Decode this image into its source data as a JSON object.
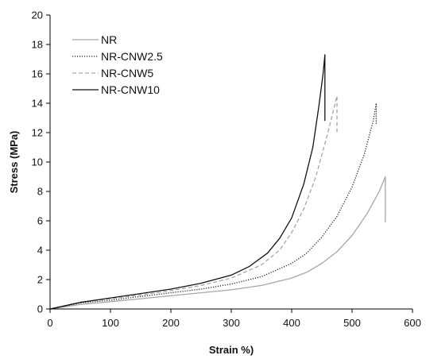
{
  "chart_data": {
    "type": "line",
    "xlabel": "Strain %)",
    "ylabel": "Stress (MPa)",
    "xlim": [
      0,
      600
    ],
    "ylim": [
      0,
      20
    ],
    "xticks": [
      0,
      100,
      200,
      300,
      400,
      500,
      600
    ],
    "yticks": [
      0,
      2,
      4,
      6,
      8,
      10,
      12,
      14,
      16,
      18,
      20
    ],
    "grid": false,
    "legend_position": "top-left",
    "series": [
      {
        "name": "NR",
        "color": "#a6a6a6",
        "dash": "solid",
        "x": [
          0,
          50,
          100,
          150,
          200,
          250,
          300,
          350,
          400,
          425,
          450,
          475,
          500,
          525,
          545,
          555,
          555
        ],
        "y": [
          0,
          0.3,
          0.5,
          0.7,
          0.9,
          1.1,
          1.3,
          1.6,
          2.1,
          2.5,
          3.1,
          3.9,
          5.0,
          6.5,
          8.0,
          9.0,
          5.9
        ]
      },
      {
        "name": "NR-CNW2.5",
        "color": "#222222",
        "dash": "dotted",
        "x": [
          0,
          50,
          100,
          150,
          200,
          250,
          300,
          350,
          400,
          425,
          450,
          475,
          500,
          520,
          535,
          540,
          540
        ],
        "y": [
          0,
          0.4,
          0.6,
          0.85,
          1.1,
          1.35,
          1.7,
          2.2,
          3.1,
          3.8,
          4.9,
          6.3,
          8.3,
          10.5,
          12.8,
          14.0,
          12.6
        ]
      },
      {
        "name": "NR-CNW5",
        "color": "#a6a6a6",
        "dash": "dashed",
        "x": [
          0,
          50,
          100,
          150,
          200,
          250,
          300,
          350,
          380,
          400,
          420,
          440,
          460,
          475,
          475
        ],
        "y": [
          0,
          0.45,
          0.7,
          0.95,
          1.25,
          1.6,
          2.1,
          3.0,
          4.0,
          5.2,
          6.8,
          9.0,
          12.0,
          14.5,
          12.0
        ]
      },
      {
        "name": "NR-CNW10",
        "color": "#111111",
        "dash": "solid",
        "x": [
          0,
          50,
          100,
          150,
          200,
          250,
          300,
          330,
          360,
          380,
          400,
          420,
          435,
          445,
          452,
          455,
          455
        ],
        "y": [
          0,
          0.45,
          0.75,
          1.05,
          1.35,
          1.75,
          2.3,
          2.9,
          3.8,
          4.8,
          6.2,
          8.5,
          11.0,
          13.8,
          16.0,
          17.3,
          12.8
        ]
      }
    ]
  }
}
